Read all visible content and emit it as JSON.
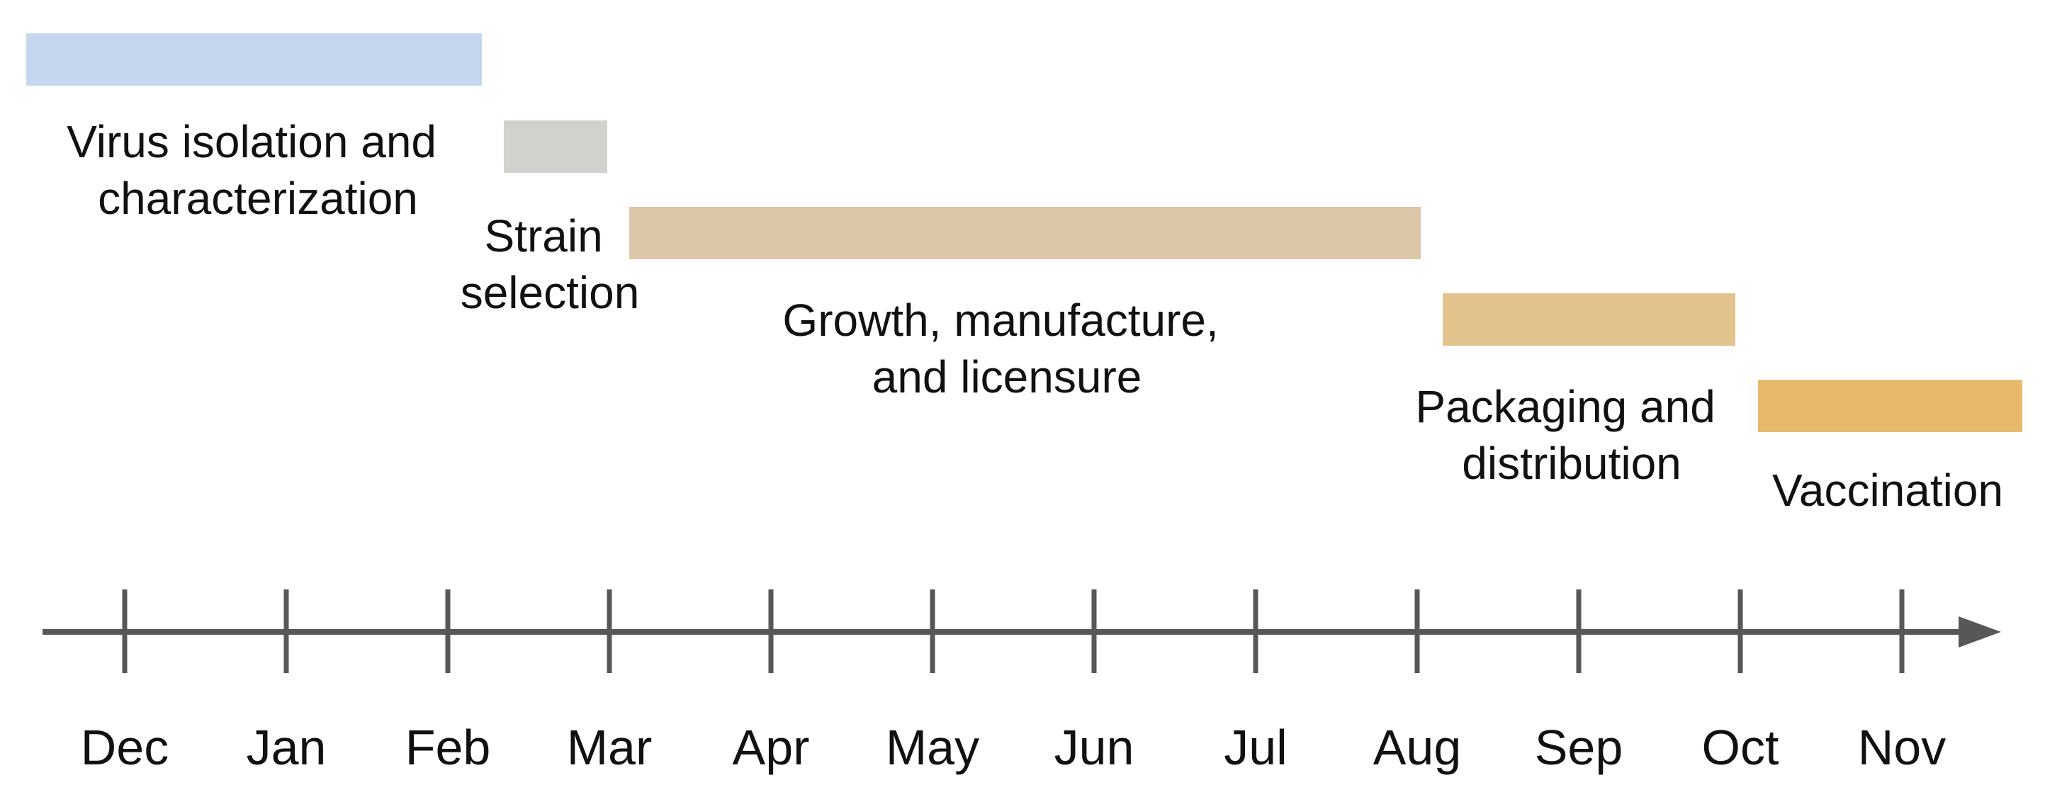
{
  "months": [
    "Dec",
    "Jan",
    "Feb",
    "Mar",
    "Apr",
    "May",
    "Jun",
    "Jul",
    "Aug",
    "Sep",
    "Oct",
    "Nov"
  ],
  "phases": [
    {
      "id": "virus-isolation",
      "label_lines": [
        "Virus isolation and",
        "characterization"
      ],
      "color": "#c5d7ee"
    },
    {
      "id": "strain-selection",
      "label_lines": [
        "Strain",
        "selection"
      ],
      "color": "#d3d1cc"
    },
    {
      "id": "growth-manufacture",
      "label_lines": [
        "Growth, manufacture,",
        "and licensure"
      ],
      "color": "#dcc7a8"
    },
    {
      "id": "packaging-distribution",
      "label_lines": [
        "Packaging and",
        "distribution"
      ],
      "color": "#e2c38d"
    },
    {
      "id": "vaccination",
      "label_lines": [
        "Vaccination"
      ],
      "color": "#e6b96d"
    }
  ],
  "axis_color": "#575757"
}
